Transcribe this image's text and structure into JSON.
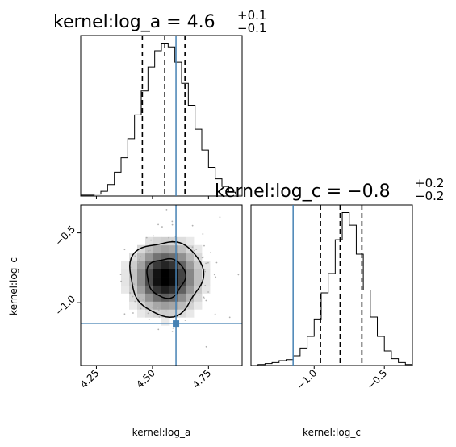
{
  "chart_data": {
    "type": "corner",
    "truth_color": "#4682b4",
    "quantile_levels": [
      0.16,
      0.5,
      0.84
    ],
    "parameters": [
      {
        "name": "log_a",
        "title_text": "kernel:log_a = 4.6",
        "title_plus": "+0.1",
        "title_minus": "−0.1",
        "axis_label": "kernel:log_a",
        "range": [
          4.18,
          4.9
        ],
        "ticks": [
          {
            "v": 4.25,
            "label": "4.25"
          },
          {
            "v": 4.5,
            "label": "4.50"
          },
          {
            "v": 4.75,
            "label": "4.75"
          }
        ],
        "truth": 4.605,
        "quantiles": [
          4.455,
          4.555,
          4.645
        ],
        "hist": {
          "x": [
            4.18,
            4.21,
            4.24,
            4.27,
            4.3,
            4.33,
            4.36,
            4.39,
            4.42,
            4.45,
            4.48,
            4.51,
            4.54,
            4.57,
            4.6,
            4.63,
            4.66,
            4.69,
            4.72,
            4.75,
            4.78,
            4.81,
            4.84,
            4.87
          ],
          "counts": [
            1,
            1,
            2,
            5,
            12,
            25,
            40,
            60,
            85,
            110,
            135,
            152,
            160,
            156,
            140,
            118,
            95,
            70,
            48,
            30,
            18,
            10,
            4,
            2
          ]
        }
      },
      {
        "name": "log_c",
        "title_text": "kernel:log_c = −0.8",
        "title_plus": "+0.2",
        "title_minus": "−0.2",
        "axis_label": "kernel:log_c",
        "range": [
          -1.45,
          -0.3
        ],
        "ticks": [
          {
            "v": -1.0,
            "label": "−1.0"
          },
          {
            "v": -0.5,
            "label": "−0.5"
          }
        ],
        "truth": -1.15,
        "quantiles": [
          -0.955,
          -0.815,
          -0.66
        ],
        "hist": {
          "x": [
            -1.45,
            -1.4,
            -1.35,
            -1.3,
            -1.25,
            -1.2,
            -1.15,
            -1.1,
            -1.05,
            -1.0,
            -0.95,
            -0.9,
            -0.85,
            -0.8,
            -0.75,
            -0.7,
            -0.65,
            -0.6,
            -0.55,
            -0.5,
            -0.45,
            -0.4,
            -0.35
          ],
          "counts": [
            0,
            1,
            2,
            3,
            5,
            6,
            10,
            18,
            30,
            48,
            75,
            95,
            130,
            158,
            145,
            115,
            78,
            50,
            30,
            15,
            7,
            3,
            1
          ]
        }
      }
    ],
    "joint": {
      "x_param": "log_a",
      "y_param": "log_c",
      "center": [
        4.56,
        -0.82
      ],
      "spread": [
        0.085,
        0.14
      ],
      "truth_point": [
        4.605,
        -1.15
      ]
    }
  }
}
